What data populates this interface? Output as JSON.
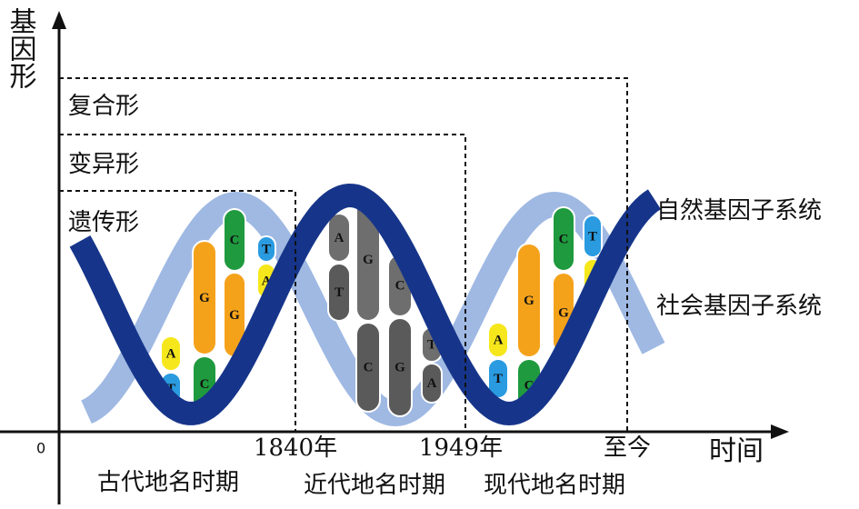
{
  "y_axis_label": "基因形",
  "x_axis_label": "时间",
  "origin_label": "0",
  "levels": [
    "复合形",
    "变异形",
    "遗传形"
  ],
  "strands": [
    "自然基因子系统",
    "社会基因子系统"
  ],
  "time_marks": [
    "1840年",
    "1949年",
    "至今"
  ],
  "periods": [
    "古代地名时期",
    "近代地名时期",
    "现代地名时期"
  ],
  "base_pairs": [
    [
      "A",
      "T"
    ],
    [
      "G",
      "C"
    ],
    [
      "C",
      "G"
    ],
    [
      "T",
      "A"
    ],
    [
      "A",
      "T"
    ],
    [
      "G",
      "C"
    ],
    [
      "C",
      "G"
    ],
    [
      "T",
      "A"
    ],
    [
      "A",
      "T"
    ],
    [
      "G",
      "C"
    ],
    [
      "C",
      "G"
    ],
    [
      "T",
      "A"
    ]
  ]
}
